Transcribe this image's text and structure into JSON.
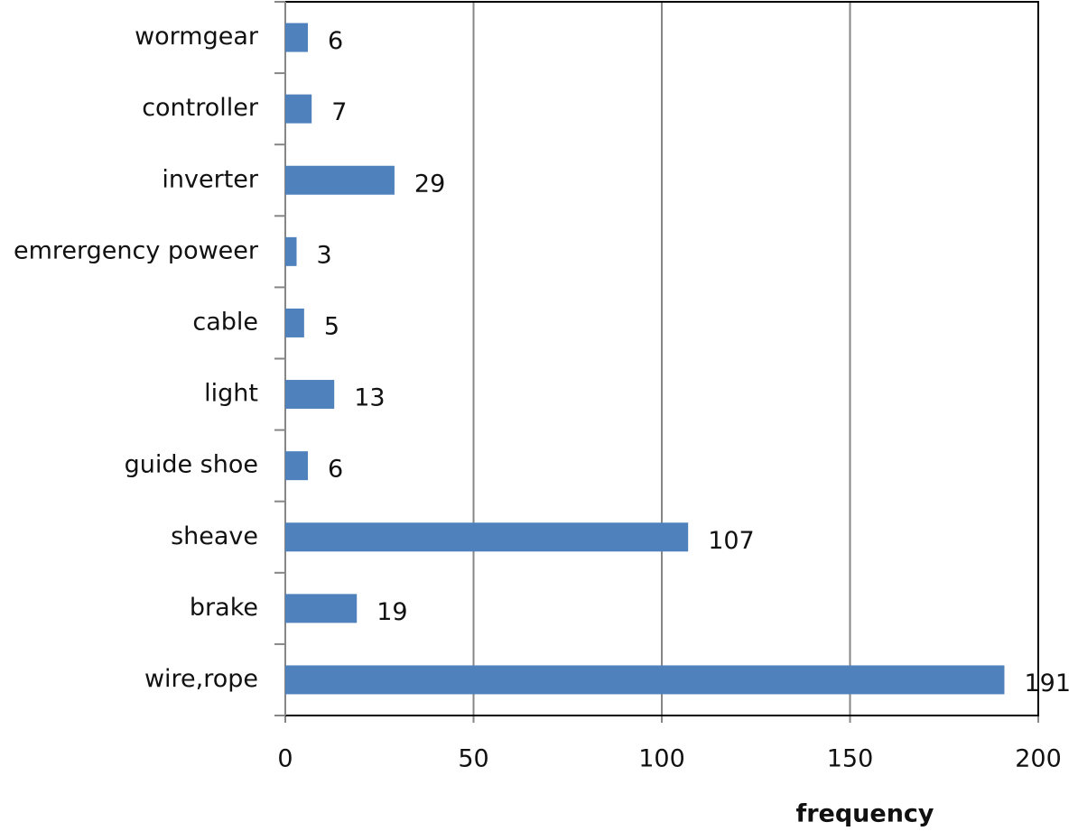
{
  "chart_data": {
    "type": "bar",
    "orientation": "horizontal",
    "x_label": "frequency",
    "categories": [
      "wormgear",
      "controller",
      "inverter",
      "emrergency poweer",
      "cable",
      "light",
      "guide shoe",
      "sheave",
      "brake",
      "wire,rope"
    ],
    "values": [
      6,
      7,
      29,
      3,
      5,
      13,
      6,
      107,
      19,
      191
    ],
    "color": "#4f81bd",
    "xlim": [
      0,
      200
    ],
    "xticks": [
      0,
      50,
      100,
      150,
      200
    ],
    "grid": true
  }
}
